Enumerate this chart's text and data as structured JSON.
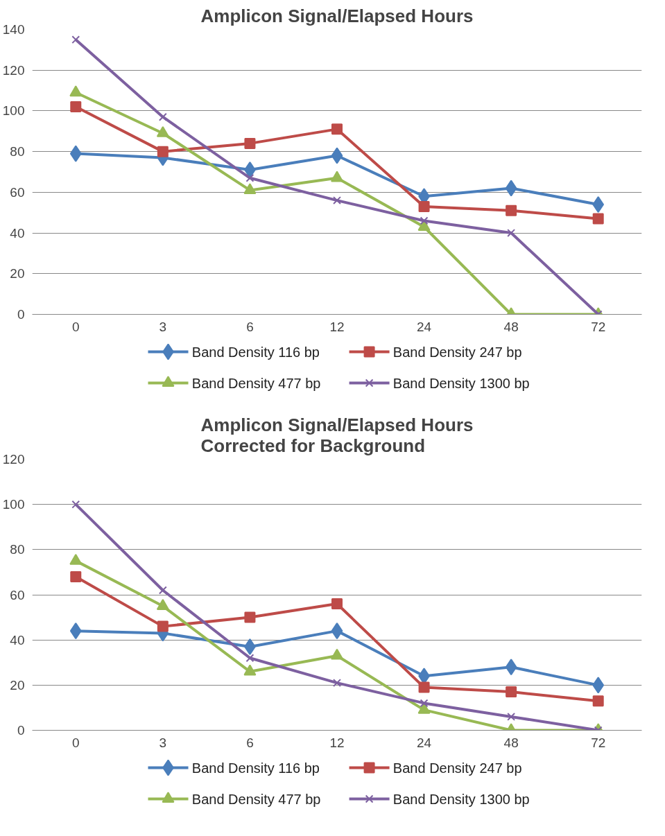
{
  "chart_data": [
    {
      "type": "line",
      "title": "Amplicon Signal/Elapsed Hours",
      "categories": [
        "0",
        "3",
        "6",
        "12",
        "24",
        "48",
        "72"
      ],
      "ylim": [
        0,
        140
      ],
      "yticks": [
        0,
        20,
        40,
        60,
        80,
        100,
        120,
        140
      ],
      "grid": "y",
      "legend": "bottom",
      "series": [
        {
          "name": "Band Density  116 bp",
          "color": "#4a7ebb",
          "marker": "diamond",
          "values": [
            79,
            77,
            71,
            78,
            58,
            62,
            54
          ]
        },
        {
          "name": "Band Density  247 bp",
          "color": "#be4b48",
          "marker": "square",
          "values": [
            102,
            80,
            84,
            91,
            53,
            51,
            47
          ]
        },
        {
          "name": "Band Density  477 bp",
          "color": "#98b954",
          "marker": "triangle",
          "values": [
            109,
            89,
            61,
            67,
            43,
            0,
            0
          ]
        },
        {
          "name": "Band Density  1300 bp",
          "color": "#7d60a0",
          "marker": "cross",
          "values": [
            135,
            97,
            67,
            56,
            46,
            40,
            0
          ]
        }
      ]
    },
    {
      "type": "line",
      "title": "Amplicon Signal/Elapsed Hours\nCorrected for Background",
      "categories": [
        "0",
        "3",
        "6",
        "12",
        "24",
        "48",
        "72"
      ],
      "ylim": [
        0,
        120
      ],
      "yticks": [
        0,
        20,
        40,
        60,
        80,
        100,
        120
      ],
      "grid": "y",
      "legend": "bottom",
      "series": [
        {
          "name": "Band Density  116 bp",
          "color": "#4a7ebb",
          "marker": "diamond",
          "values": [
            44,
            43,
            37,
            44,
            24,
            28,
            20
          ]
        },
        {
          "name": "Band Density  247 bp",
          "color": "#be4b48",
          "marker": "square",
          "values": [
            68,
            46,
            50,
            56,
            19,
            17,
            13
          ]
        },
        {
          "name": "Band Density  477 bp",
          "color": "#98b954",
          "marker": "triangle",
          "values": [
            75,
            55,
            26,
            33,
            9,
            0,
            0
          ]
        },
        {
          "name": "Band Density  1300 bp",
          "color": "#7d60a0",
          "marker": "cross",
          "values": [
            100,
            62,
            32,
            21,
            12,
            6,
            0
          ]
        }
      ]
    }
  ]
}
